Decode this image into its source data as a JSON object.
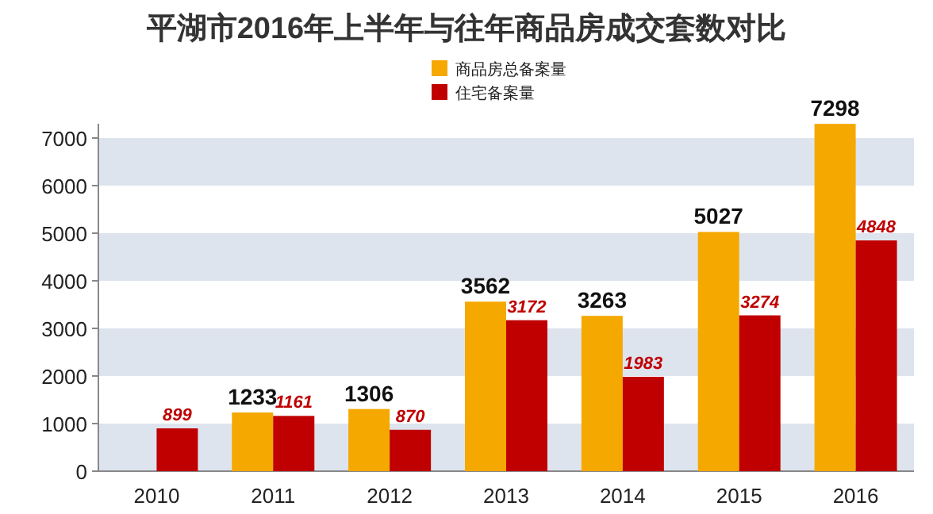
{
  "chart_data": {
    "type": "bar",
    "title": "平湖市2016年上半年与往年商品房成交套数对比",
    "categories": [
      "2010",
      "2011",
      "2012",
      "2013",
      "2014",
      "2015",
      "2016"
    ],
    "series": [
      {
        "name": "商品房总备案量",
        "color": "#f5a800",
        "values": [
          null,
          1233,
          1306,
          3562,
          3263,
          5027,
          7298
        ]
      },
      {
        "name": "住宅备案量",
        "color": "#c00000",
        "values": [
          899,
          1161,
          870,
          3172,
          1983,
          3274,
          4848
        ]
      }
    ],
    "ylim": [
      0,
      7300
    ],
    "yticks": [
      0,
      1000,
      2000,
      3000,
      4000,
      5000,
      6000,
      7000
    ],
    "bands": [
      {
        "axis": "y",
        "from": 0,
        "to": 1000,
        "color": "#dde4ee"
      },
      {
        "axis": "y",
        "from": 2000,
        "to": 3000,
        "color": "#dde4ee"
      },
      {
        "axis": "y",
        "from": 4000,
        "to": 5000,
        "color": "#dde4ee"
      },
      {
        "axis": "y",
        "from": 6000,
        "to": 7000,
        "color": "#dde4ee"
      }
    ],
    "data_labels": true,
    "legend": "top"
  }
}
